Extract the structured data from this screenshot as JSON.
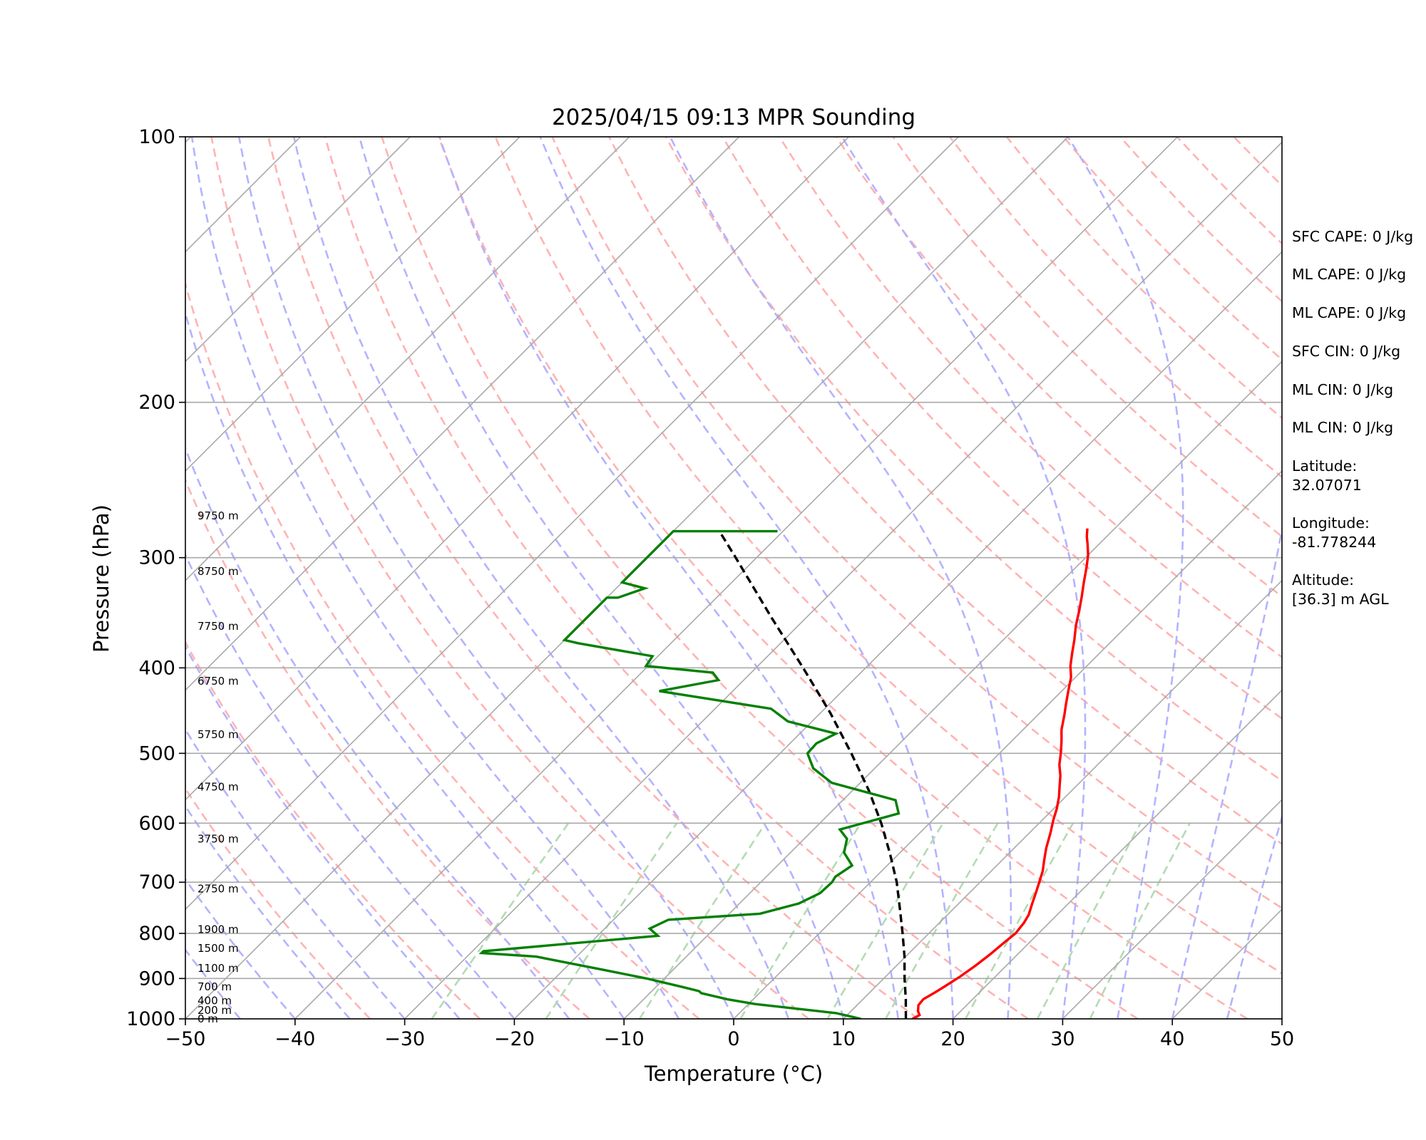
{
  "chart_data": {
    "type": "line",
    "diagram": "skew-t log-p",
    "title": "2025/04/15 09:13 MPR Sounding",
    "xlabel": "Temperature (°C)",
    "ylabel": "Pressure (hPa)",
    "xlim": [
      -50,
      50
    ],
    "ylim": [
      1000,
      100
    ],
    "y_scale": "log",
    "x_ticks": [
      "−50",
      "−40",
      "−30",
      "−20",
      "−10",
      "0",
      "10",
      "20",
      "30",
      "40",
      "50"
    ],
    "y_ticks": [
      "100",
      "200",
      "300",
      "400",
      "500",
      "600",
      "700",
      "800",
      "900",
      "1000"
    ],
    "grid": true,
    "colors": {
      "temperature": "#ff0000",
      "dewpoint": "#008000",
      "parcel": "#000000",
      "isotherm": "#a9a9a9",
      "dry_adiabat": "#ffb3b3",
      "moist_adiabat": "#b3b3ff",
      "mixing_ratio": "#b3dbb3"
    },
    "series": [
      {
        "key": "temperature",
        "points": [
          [
            1000,
            16.3
          ],
          [
            990,
            16.6
          ],
          [
            980,
            16.1
          ],
          [
            965,
            15.6
          ],
          [
            950,
            15.5
          ],
          [
            935,
            15.9
          ],
          [
            918,
            16.3
          ],
          [
            895,
            16.8
          ],
          [
            870,
            17.2
          ],
          [
            845,
            17.5
          ],
          [
            820,
            17.7
          ],
          [
            800,
            17.9
          ],
          [
            778,
            17.7
          ],
          [
            762,
            17.4
          ],
          [
            740,
            16.7
          ],
          [
            718,
            16.0
          ],
          [
            700,
            15.4
          ],
          [
            680,
            14.7
          ],
          [
            660,
            13.8
          ],
          [
            640,
            12.9
          ],
          [
            615,
            11.9
          ],
          [
            595,
            11.0
          ],
          [
            578,
            10.3
          ],
          [
            560,
            9.4
          ],
          [
            545,
            8.5
          ],
          [
            530,
            7.6
          ],
          [
            515,
            6.5
          ],
          [
            500,
            5.6
          ],
          [
            485,
            4.6
          ],
          [
            470,
            3.5
          ],
          [
            452,
            2.4
          ],
          [
            440,
            1.6
          ],
          [
            425,
            0.6
          ],
          [
            410,
            -0.4
          ],
          [
            398,
            -1.5
          ],
          [
            385,
            -2.5
          ],
          [
            372,
            -3.5
          ],
          [
            358,
            -4.7
          ],
          [
            345,
            -5.7
          ],
          [
            332,
            -6.8
          ],
          [
            320,
            -7.9
          ],
          [
            308,
            -9.0
          ],
          [
            298,
            -10.0
          ],
          [
            290,
            -11.0
          ],
          [
            284,
            -11.8
          ],
          [
            278,
            -12.5
          ]
        ]
      },
      {
        "key": "dewpoint",
        "points": [
          [
            1000,
            11.6
          ],
          [
            993,
            10.3
          ],
          [
            985,
            8.8
          ],
          [
            962,
            0.6
          ],
          [
            950,
            -2.4
          ],
          [
            935,
            -5.3
          ],
          [
            930,
            -5.7
          ],
          [
            920,
            -7.6
          ],
          [
            900,
            -11.6
          ],
          [
            880,
            -16.3
          ],
          [
            850,
            -23.7
          ],
          [
            842,
            -29.0
          ],
          [
            838,
            -29.0
          ],
          [
            805,
            -14.5
          ],
          [
            790,
            -15.9
          ],
          [
            772,
            -15.0
          ],
          [
            760,
            -7.2
          ],
          [
            740,
            -4.6
          ],
          [
            720,
            -3.6
          ],
          [
            700,
            -3.5
          ],
          [
            690,
            -3.7
          ],
          [
            670,
            -3.2
          ],
          [
            648,
            -5.1
          ],
          [
            625,
            -6.1
          ],
          [
            610,
            -7.6
          ],
          [
            585,
            -3.7
          ],
          [
            565,
            -5.2
          ],
          [
            540,
            -12.6
          ],
          [
            520,
            -15.6
          ],
          [
            500,
            -17.5
          ],
          [
            487,
            -17.6
          ],
          [
            475,
            -16.7
          ],
          [
            460,
            -22.2
          ],
          [
            445,
            -24.9
          ],
          [
            425,
            -36.7
          ],
          [
            413,
            -32.3
          ],
          [
            405,
            -33.5
          ],
          [
            398,
            -40.2
          ],
          [
            388,
            -40.5
          ],
          [
            375,
            -48.5
          ],
          [
            372,
            -50.0
          ],
          [
            333,
            -50.0
          ],
          [
            333,
            -49.0
          ],
          [
            325,
            -47.4
          ],
          [
            320,
            -50.0
          ],
          [
            280,
            -50.0
          ],
          [
            280,
            -40.5
          ]
        ]
      },
      {
        "key": "parcel",
        "points": [
          [
            1000,
            15.7
          ],
          [
            950,
            13.9
          ],
          [
            900,
            11.9
          ],
          [
            850,
            9.9
          ],
          [
            800,
            7.6
          ],
          [
            750,
            5.1
          ],
          [
            700,
            2.4
          ],
          [
            650,
            -0.8
          ],
          [
            600,
            -4.4
          ],
          [
            550,
            -8.6
          ],
          [
            500,
            -13.5
          ],
          [
            450,
            -19.1
          ],
          [
            400,
            -25.7
          ],
          [
            350,
            -33.3
          ],
          [
            300,
            -41.9
          ],
          [
            280,
            -45.8
          ]
        ]
      }
    ],
    "altitude_labels": [
      {
        "label": "0 m",
        "p": 1000
      },
      {
        "label": "200 m",
        "p": 978
      },
      {
        "label": "400 m",
        "p": 954
      },
      {
        "label": "700 m",
        "p": 920
      },
      {
        "label": "1100 m",
        "p": 876
      },
      {
        "label": "1500 m",
        "p": 832
      },
      {
        "label": "1900 m",
        "p": 792
      },
      {
        "label": "2750 m",
        "p": 712
      },
      {
        "label": "3750 m",
        "p": 625
      },
      {
        "label": "4750 m",
        "p": 546
      },
      {
        "label": "5750 m",
        "p": 476
      },
      {
        "label": "6750 m",
        "p": 414
      },
      {
        "label": "7750 m",
        "p": 359
      },
      {
        "label": "8750 m",
        "p": 311
      },
      {
        "label": "9750 m",
        "p": 269
      }
    ]
  },
  "side_panel": {
    "sfc_cape": "SFC CAPE: 0 J/kg",
    "ml_cape_1": "ML CAPE: 0 J/kg",
    "ml_cape_2": "ML CAPE: 0 J/kg",
    "sfc_cin": "SFC CIN: 0 J/kg",
    "ml_cin_1": "ML CIN: 0 J/kg",
    "ml_cin_2": "ML CIN: 0 J/kg",
    "latitude_label": "Latitude:",
    "latitude_value": "32.07071",
    "longitude_label": "Longitude:",
    "longitude_value": "-81.778244",
    "altitude_label": "Altitude:",
    "altitude_value": "[36.3] m AGL"
  }
}
